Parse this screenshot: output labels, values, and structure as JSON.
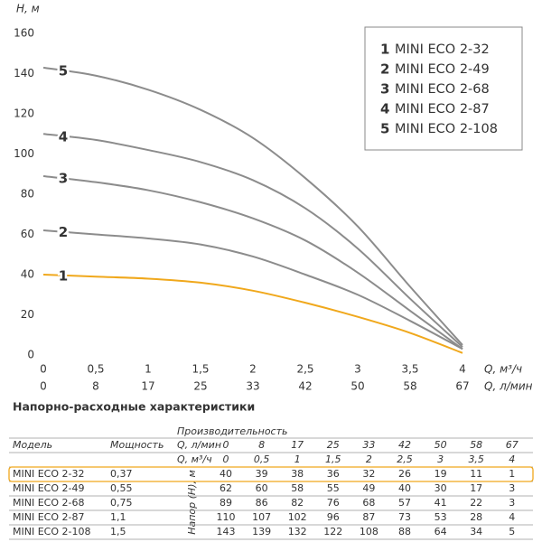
{
  "chart_data": {
    "type": "line",
    "y_label": "H, м",
    "x_label": "Q, м³/ч",
    "x2_label": "Q, л/мин",
    "x": [
      0,
      0.5,
      1,
      1.5,
      2,
      2.5,
      3,
      3.5,
      4
    ],
    "xlim": [
      0,
      4
    ],
    "ylim": [
      0,
      160
    ],
    "yticks": [
      0,
      20,
      40,
      60,
      80,
      100,
      120,
      140,
      160
    ],
    "xticks": [
      {
        "value": 0,
        "label": "0"
      },
      {
        "value": 0.5,
        "label": "0,5"
      },
      {
        "value": 1,
        "label": "1"
      },
      {
        "value": 1.5,
        "label": "1,5"
      },
      {
        "value": 2,
        "label": "2"
      },
      {
        "value": 2.5,
        "label": "2,5"
      },
      {
        "value": 3,
        "label": "3"
      },
      {
        "value": 3.5,
        "label": "3,5"
      },
      {
        "value": 4,
        "label": "4"
      }
    ],
    "x2ticks": [
      {
        "value": 0,
        "label": "0"
      },
      {
        "value": 0.5,
        "label": "8"
      },
      {
        "value": 1,
        "label": "17"
      },
      {
        "value": 1.5,
        "label": "25"
      },
      {
        "value": 2,
        "label": "33"
      },
      {
        "value": 2.5,
        "label": "42"
      },
      {
        "value": 3,
        "label": "50"
      },
      {
        "value": 3.5,
        "label": "58"
      },
      {
        "value": 4,
        "label": "67"
      }
    ],
    "series": [
      {
        "name": "MINI ECO 2-32",
        "label": "1",
        "color": "#f0a81c",
        "values": [
          40,
          39,
          38,
          36,
          32,
          26,
          19,
          11,
          1
        ]
      },
      {
        "name": "MINI ECO 2-49",
        "label": "2",
        "color": "#8c8c8c",
        "values": [
          62,
          60,
          58,
          55,
          49,
          40,
          30,
          17,
          3
        ]
      },
      {
        "name": "MINI ECO 2-68",
        "label": "3",
        "color": "#8c8c8c",
        "values": [
          89,
          86,
          82,
          76,
          68,
          57,
          41,
          22,
          3
        ]
      },
      {
        "name": "MINI ECO 2-87",
        "label": "4",
        "color": "#8c8c8c",
        "values": [
          110,
          107,
          102,
          96,
          87,
          73,
          53,
          28,
          4
        ]
      },
      {
        "name": "MINI ECO 2-108",
        "label": "5",
        "color": "#8c8c8c",
        "values": [
          143,
          139,
          132,
          122,
          108,
          88,
          64,
          34,
          5
        ]
      }
    ]
  },
  "table": {
    "title": "Напорно-расходные характеристики",
    "group": "Производительность",
    "model": "Модель",
    "power": "Мощность",
    "head": "Напор (H), м",
    "powers": [
      "0,37",
      "0,55",
      "0,75",
      "1,1",
      "1,5"
    ]
  }
}
